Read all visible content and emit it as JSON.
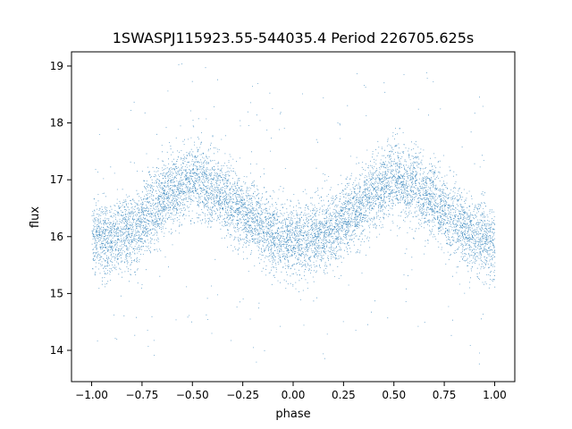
{
  "chart_data": {
    "type": "scatter",
    "title": "1SWASPJ115923.55-544035.4 Period 226705.625s",
    "xlabel": "phase",
    "ylabel": "flux",
    "xlim": [
      -1.1,
      1.1
    ],
    "ylim": [
      13.45,
      19.25
    ],
    "xticks": [
      -1.0,
      -0.75,
      -0.5,
      -0.25,
      0.0,
      0.25,
      0.5,
      0.75,
      1.0
    ],
    "xtick_labels": [
      "−1.00",
      "−0.75",
      "−0.50",
      "−0.25",
      "0.00",
      "0.25",
      "0.50",
      "0.75",
      "1.00"
    ],
    "yticks": [
      14,
      15,
      16,
      17,
      18,
      19
    ],
    "ytick_labels": [
      "14",
      "15",
      "16",
      "17",
      "18",
      "19"
    ],
    "grid": false,
    "marker_color": "#1f77b4",
    "series": [
      {
        "phase_trend": [
          [
            -1.0,
            16.0
          ],
          [
            -0.9,
            15.95
          ],
          [
            -0.8,
            16.1
          ],
          [
            -0.7,
            16.45
          ],
          [
            -0.6,
            16.8
          ],
          [
            -0.5,
            17.0
          ],
          [
            -0.4,
            16.85
          ],
          [
            -0.3,
            16.6
          ],
          [
            -0.2,
            16.3
          ],
          [
            -0.1,
            16.0
          ],
          [
            0.0,
            15.95
          ],
          [
            0.1,
            16.0
          ],
          [
            0.2,
            16.1
          ],
          [
            0.3,
            16.45
          ],
          [
            0.4,
            16.8
          ],
          [
            0.5,
            17.0
          ],
          [
            0.6,
            16.85
          ],
          [
            0.7,
            16.6
          ],
          [
            0.8,
            16.3
          ],
          [
            0.9,
            16.0
          ],
          [
            1.0,
            15.9
          ]
        ],
        "scatter_sigma": 0.32,
        "points_count": 9000
      }
    ]
  }
}
